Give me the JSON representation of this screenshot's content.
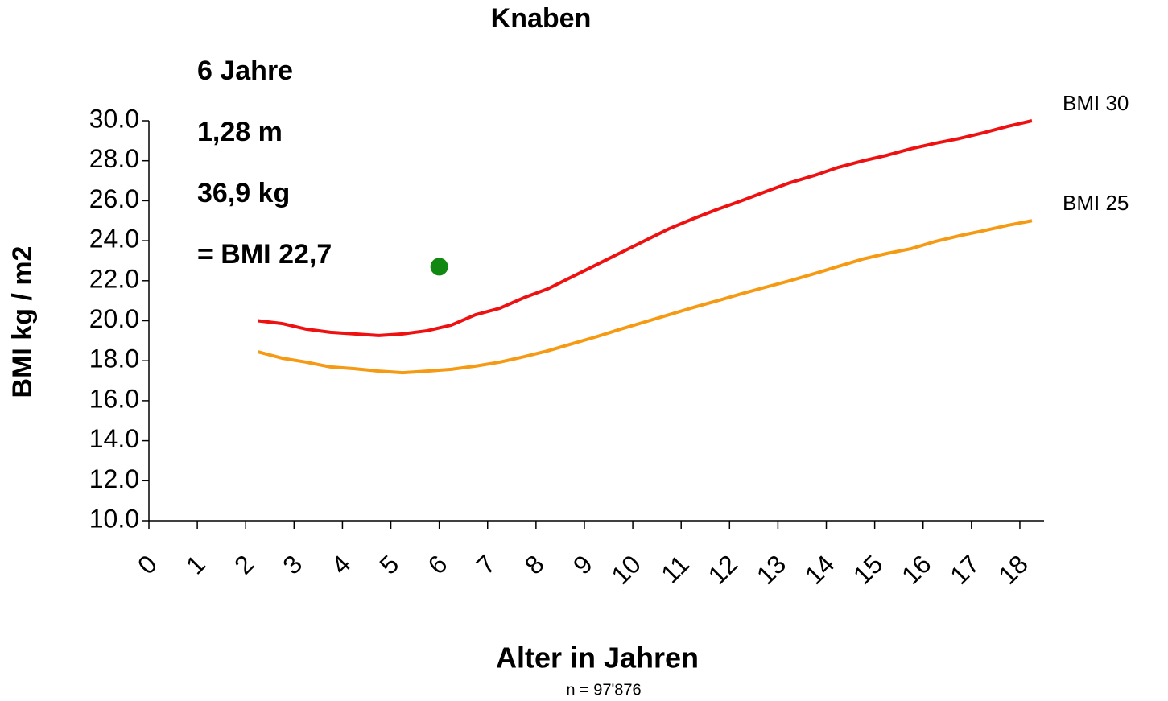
{
  "chart_data": {
    "type": "line",
    "title": "Knaben",
    "x_label": "Alter in Jahren",
    "y_label": "BMI kg / m2",
    "footnote": "n = 97'876",
    "annotations": [
      "6 Jahre",
      "1,28 m",
      "36,9 kg",
      "= BMI 22,7"
    ],
    "x": [
      2.25,
      2.75,
      3.25,
      3.75,
      4.25,
      4.75,
      5.25,
      5.75,
      6.25,
      6.75,
      7.25,
      7.75,
      8.25,
      8.75,
      9.25,
      9.75,
      10.25,
      10.75,
      11.25,
      11.75,
      12.25,
      12.75,
      13.25,
      13.75,
      14.25,
      14.75,
      15.25,
      15.75,
      16.25,
      16.75,
      17.25,
      17.75,
      18.25
    ],
    "series": [
      {
        "name": "BMI 30",
        "color": "#ee1111",
        "values": [
          20.0,
          19.86,
          19.58,
          19.42,
          19.34,
          19.26,
          19.34,
          19.5,
          19.78,
          20.3,
          20.62,
          21.15,
          21.6,
          22.2,
          22.8,
          23.4,
          24.0,
          24.6,
          25.1,
          25.57,
          26.0,
          26.46,
          26.9,
          27.26,
          27.67,
          27.99,
          28.27,
          28.6,
          28.87,
          29.11,
          29.4,
          29.72,
          30.0
        ]
      },
      {
        "name": "BMI 25",
        "color": "#f59a12",
        "values": [
          18.45,
          18.13,
          17.93,
          17.69,
          17.6,
          17.48,
          17.4,
          17.48,
          17.57,
          17.73,
          17.93,
          18.2,
          18.5,
          18.85,
          19.2,
          19.58,
          19.94,
          20.3,
          20.66,
          21.0,
          21.35,
          21.68,
          22.0,
          22.35,
          22.72,
          23.08,
          23.36,
          23.6,
          23.96,
          24.25,
          24.5,
          24.77,
          25.0
        ]
      }
    ],
    "point": {
      "x": 6,
      "y": 22.7,
      "color": "#118811"
    },
    "xlim": [
      0,
      18.5
    ],
    "xticks": [
      0,
      1,
      2,
      3,
      4,
      5,
      6,
      7,
      8,
      9,
      10,
      11,
      12,
      13,
      14,
      15,
      16,
      17,
      18
    ],
    "ylim": [
      10,
      30
    ],
    "yticks": [
      {
        "value": 10,
        "label": "10.0"
      },
      {
        "value": 12,
        "label": "12.0"
      },
      {
        "value": 14,
        "label": "14.0"
      },
      {
        "value": 16,
        "label": "16.0"
      },
      {
        "value": 18,
        "label": "18.0"
      },
      {
        "value": 20,
        "label": "20.0"
      },
      {
        "value": 22,
        "label": "22.0"
      },
      {
        "value": 24,
        "label": "24.0"
      },
      {
        "value": 26,
        "label": "26.0"
      },
      {
        "value": 28,
        "label": "28.0"
      },
      {
        "value": 30,
        "label": "30.0"
      }
    ]
  }
}
